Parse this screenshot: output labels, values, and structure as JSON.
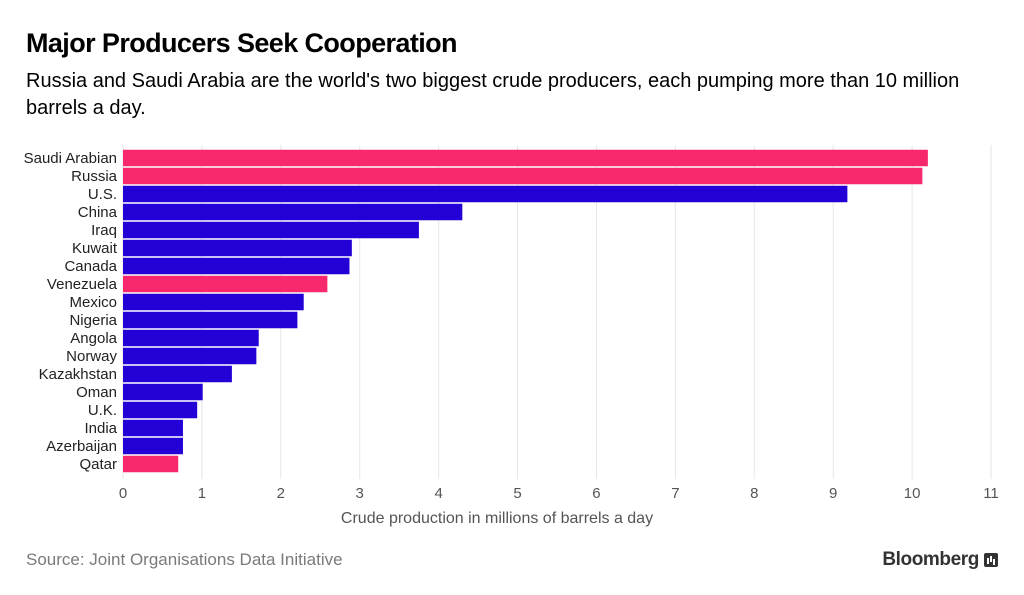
{
  "chart_data": {
    "type": "bar",
    "orientation": "horizontal",
    "title": "Major Producers Seek Cooperation",
    "subtitle": "Russia and Saudi Arabia are the world's two biggest crude producers, each pumping more than 10 million barrels a day.",
    "xlabel": "Crude production in millions of barrels a day",
    "ylabel": "",
    "xlim": [
      0,
      11
    ],
    "xticks": [
      0,
      1,
      2,
      3,
      4,
      5,
      6,
      7,
      8,
      9,
      10,
      11
    ],
    "grid": "vertical",
    "categories": [
      "Saudi Arabian",
      "Russia",
      "U.S.",
      "China",
      "Iraq",
      "Kuwait",
      "Canada",
      "Venezuela",
      "Mexico",
      "Nigeria",
      "Angola",
      "Norway",
      "Kazakhstan",
      "Oman",
      "U.K.",
      "India",
      "Azerbaijan",
      "Qatar"
    ],
    "values": [
      10.2,
      10.13,
      9.18,
      4.3,
      3.75,
      2.9,
      2.87,
      2.59,
      2.29,
      2.21,
      1.72,
      1.69,
      1.38,
      1.01,
      0.94,
      0.76,
      0.76,
      0.7
    ],
    "highlighted": [
      true,
      true,
      false,
      false,
      false,
      false,
      false,
      true,
      false,
      false,
      false,
      false,
      false,
      false,
      false,
      false,
      false,
      true
    ],
    "colors": {
      "highlight": "#f7286c",
      "default": "#2200d6"
    }
  },
  "footer": {
    "source": "Source: Joint Organisations Data Initiative",
    "brand": "Bloomberg"
  },
  "icons": {
    "brand": "bloomberg-chart-icon"
  }
}
